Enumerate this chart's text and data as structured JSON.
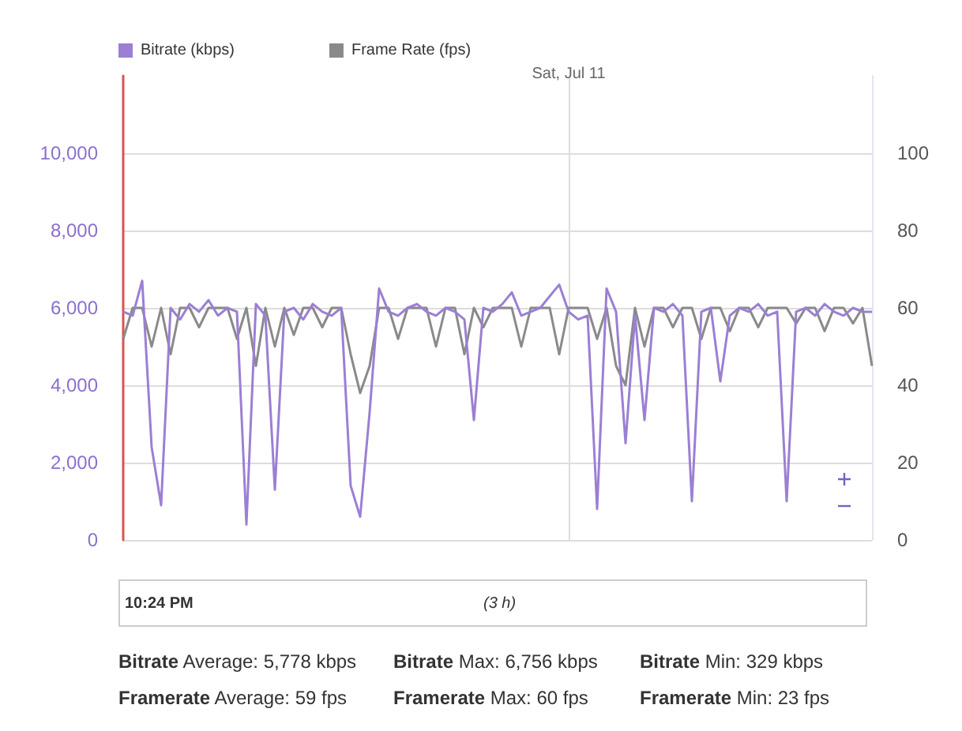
{
  "chart_data": {
    "type": "line",
    "categories": [
      null,
      null,
      null,
      null,
      null,
      null,
      null,
      null,
      null,
      null,
      null,
      null,
      null,
      null,
      null,
      null,
      null,
      null,
      null,
      null,
      null,
      null,
      null,
      null,
      null,
      null,
      null,
      null,
      null,
      null,
      null,
      null,
      null,
      null,
      null,
      null,
      null,
      null,
      null,
      null,
      null,
      null,
      null,
      null,
      null,
      null,
      null,
      "Sat, Jul 11",
      null,
      null,
      null,
      null,
      null,
      null,
      null,
      null,
      null,
      null,
      null,
      null,
      null,
      null,
      null,
      null,
      null,
      null,
      null,
      null,
      null,
      null,
      null,
      null,
      null,
      null,
      null,
      null,
      null,
      null,
      null,
      null
    ],
    "series": [
      {
        "name": "Bitrate (kbps)",
        "color": "#9b7fd4",
        "values": [
          5900,
          5800,
          6700,
          2400,
          900,
          6000,
          5700,
          6100,
          5900,
          6200,
          5800,
          6000,
          5900,
          400,
          6100,
          5800,
          1300,
          5900,
          6000,
          5700,
          6100,
          5900,
          5800,
          6000,
          1400,
          600,
          3300,
          6500,
          5900,
          5800,
          6000,
          6100,
          5900,
          5800,
          6000,
          5900,
          5700,
          3100,
          6000,
          5900,
          6100,
          6400,
          5800,
          5900,
          6000,
          6300,
          6600,
          5900,
          5700,
          5800,
          800,
          6500,
          5900,
          2500,
          5800,
          3100,
          6000,
          5900,
          6100,
          5800,
          1000,
          5900,
          6000,
          4100,
          5800,
          6000,
          5900,
          6100,
          5800,
          5900,
          1000,
          5900,
          6000,
          5800,
          6100,
          5900,
          5800,
          6000,
          5900,
          5900
        ]
      },
      {
        "name": "Frame Rate (fps)",
        "color": "#8a8a8a",
        "axis": "y2",
        "values": [
          52,
          60,
          60,
          50,
          60,
          48,
          60,
          60,
          55,
          60,
          60,
          60,
          52,
          60,
          45,
          60,
          50,
          60,
          53,
          60,
          60,
          55,
          60,
          60,
          48,
          38,
          45,
          60,
          60,
          52,
          60,
          60,
          60,
          50,
          60,
          60,
          48,
          60,
          55,
          60,
          60,
          60,
          50,
          60,
          60,
          60,
          48,
          60,
          60,
          60,
          52,
          60,
          45,
          40,
          60,
          50,
          60,
          60,
          55,
          60,
          60,
          52,
          60,
          60,
          54,
          60,
          60,
          55,
          60,
          60,
          60,
          56,
          60,
          60,
          54,
          60,
          60,
          56,
          60,
          45
        ]
      }
    ],
    "ylim": [
      0,
      12000
    ],
    "yticks": [
      0,
      {
        "value": 2000,
        "label": "2,000"
      },
      {
        "value": 4000,
        "label": "4,000"
      },
      {
        "value": 6000,
        "label": "6,000"
      },
      {
        "value": 8000,
        "label": "8,000"
      },
      {
        "value": 10000,
        "label": "10,000"
      }
    ],
    "y2lim": [
      0,
      120
    ],
    "y2ticks": [
      0,
      20,
      40,
      60,
      80,
      100
    ],
    "annotations": [
      "10:24 PM",
      "(3 h)",
      "Bitrate Average: 5,778 kbps",
      "Bitrate Max: 6,756 kbps",
      "Bitrate Min: 329 kbps",
      "Framerate Average: 59 fps",
      "Framerate Max: 60 fps",
      "Framerate Min: 23 fps"
    ],
    "grid": true,
    "legend": "top left",
    "marker": "none",
    "line_style": "solid"
  }
}
